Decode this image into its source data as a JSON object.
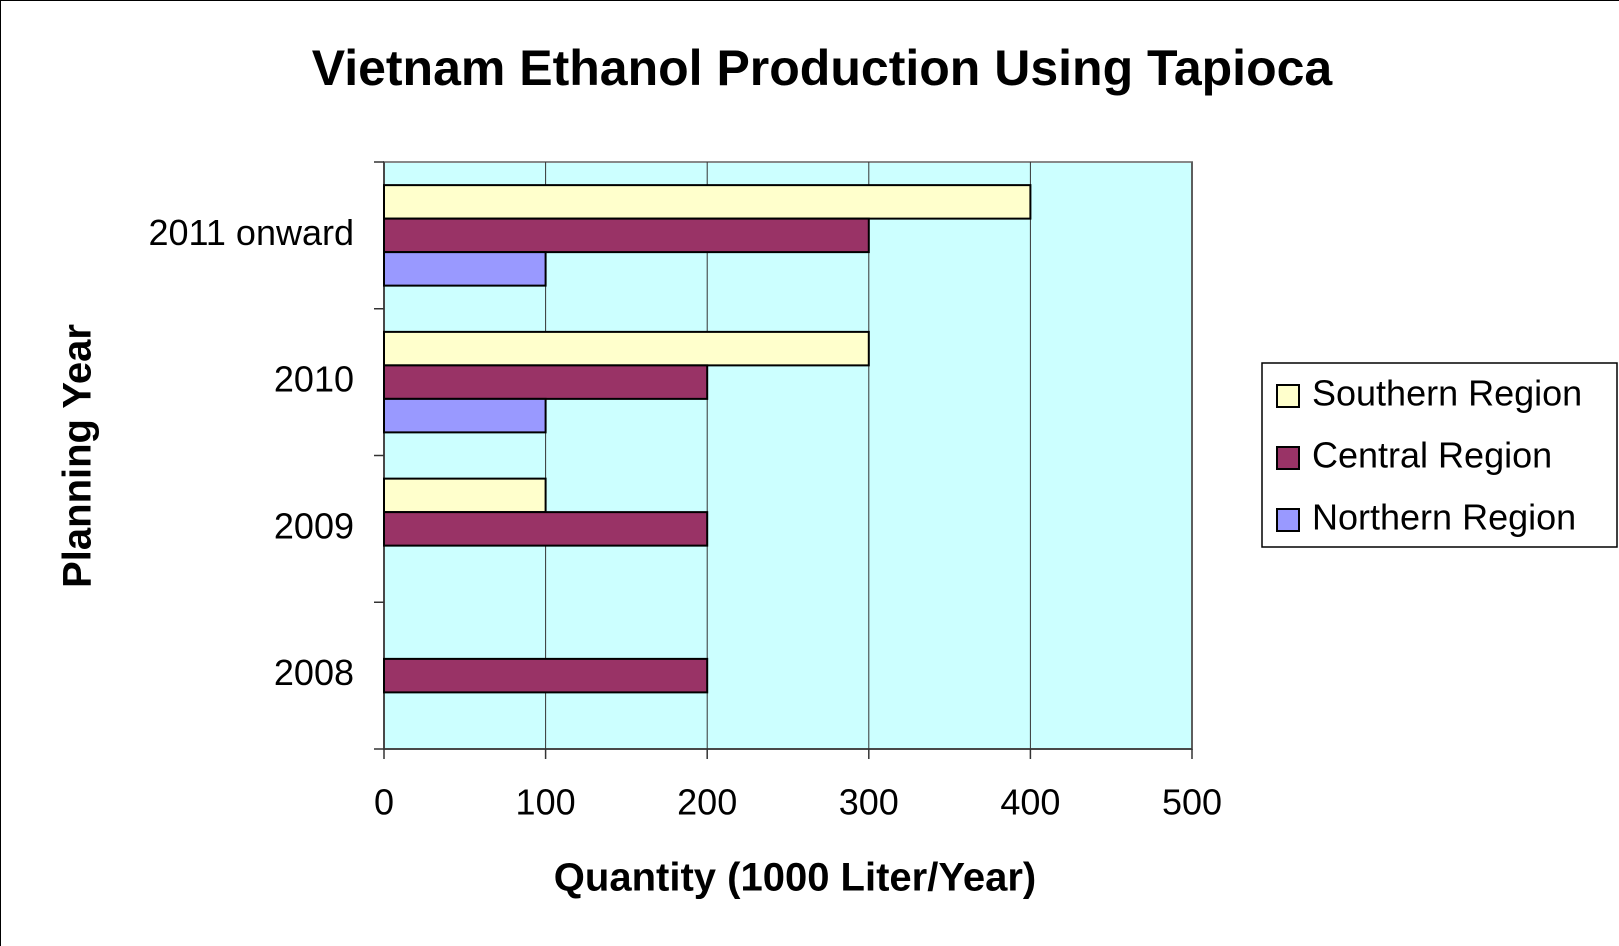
{
  "chart_data": {
    "type": "bar",
    "orientation": "horizontal",
    "title": "Vietnam Ethanol Production Using Tapioca",
    "x_label": "Quantity (1000 Liter/Year)",
    "y_label": "Planning Year",
    "categories": [
      "2008",
      "2009",
      "2010",
      "2011 onward"
    ],
    "series": [
      {
        "name": "Southern Region",
        "color": "#ffffcc",
        "values": [
          0,
          100,
          300,
          400
        ]
      },
      {
        "name": "Central Region",
        "color": "#993366",
        "values": [
          200,
          200,
          200,
          300
        ]
      },
      {
        "name": "Northern Region",
        "color": "#9999ff",
        "values": [
          0,
          0,
          100,
          100
        ]
      }
    ],
    "xlim": [
      0,
      500
    ],
    "xticks": [
      0,
      100,
      200,
      300,
      400,
      500
    ],
    "grid": true,
    "legend": "right",
    "background": "#ccffff"
  }
}
